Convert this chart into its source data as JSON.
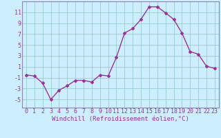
{
  "x": [
    0,
    1,
    2,
    3,
    4,
    5,
    6,
    7,
    8,
    9,
    10,
    11,
    12,
    13,
    14,
    15,
    16,
    17,
    18,
    19,
    20,
    21,
    22,
    23
  ],
  "y": [
    -0.5,
    -0.7,
    -2.0,
    -5.0,
    -3.3,
    -2.5,
    -1.5,
    -1.5,
    -1.8,
    -0.5,
    -0.7,
    2.7,
    7.2,
    8.0,
    9.7,
    12.0,
    12.0,
    10.9,
    9.7,
    7.2,
    3.8,
    3.3,
    1.1,
    0.7
  ],
  "line_color": "#993399",
  "marker": "D",
  "markersize": 2.0,
  "linewidth": 1.0,
  "bg_color": "#cceeff",
  "grid_color": "#99cccc",
  "axis_color": "#8888aa",
  "text_color": "#993399",
  "xlabel": "Windchill (Refroidissement éolien,°C)",
  "xlabel_fontsize": 6.5,
  "tick_fontsize": 6.0,
  "yticks": [
    -5,
    -3,
    -1,
    1,
    3,
    5,
    7,
    9,
    11
  ],
  "ylim": [
    -6.5,
    13.0
  ],
  "xlim": [
    -0.5,
    23.5
  ]
}
